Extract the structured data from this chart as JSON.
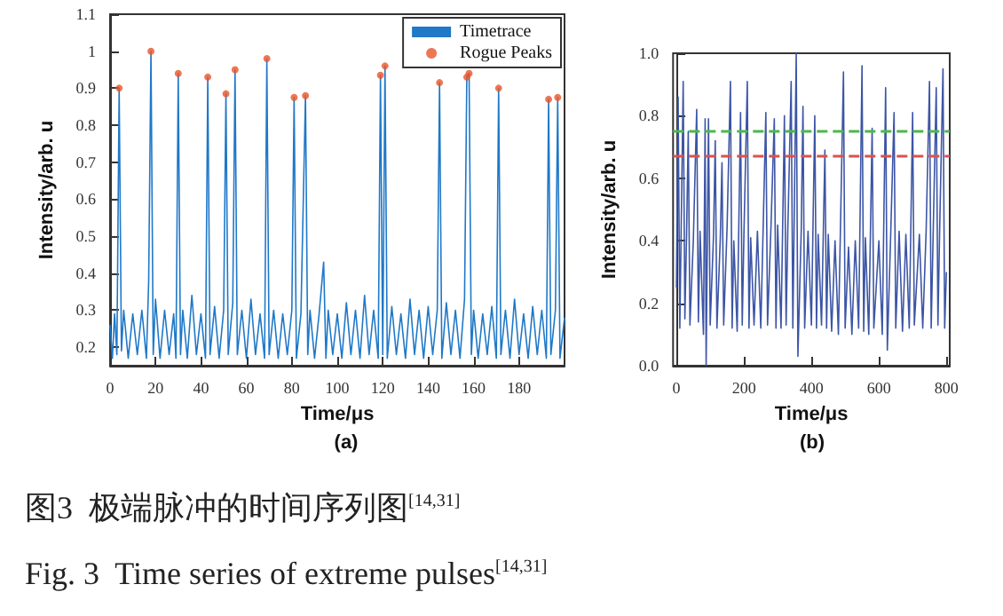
{
  "chart_data": [
    {
      "type": "line",
      "title": "(a)",
      "xlabel": "Time/μs",
      "ylabel": "Intensity/arb. u",
      "xlim": [
        0,
        200
      ],
      "xticks": [
        0,
        20,
        40,
        60,
        80,
        100,
        120,
        140,
        160,
        180
      ],
      "ylim": [
        0.15,
        1.1
      ],
      "yticks": [
        0.2,
        0.3,
        0.4,
        0.5,
        0.6,
        0.7,
        0.8,
        0.9,
        1,
        1.1
      ],
      "grid": false,
      "legend": "top right",
      "annotations": [
        "图3  极端脉冲的时间序列图$^{[14,31]}$",
        "Fig. 3  Time series of extreme pulses$^{[14,31]}$"
      ],
      "series": [
        {
          "name": "Timetrace",
          "color": "#1f78c8",
          "x": [
            0,
            1,
            2,
            3,
            4,
            5,
            6,
            8,
            10,
            12,
            14,
            16,
            17,
            18,
            19,
            20,
            22,
            24,
            26,
            28,
            29,
            30,
            31,
            32,
            34,
            36,
            38,
            40,
            42,
            43,
            44,
            46,
            48,
            50,
            51,
            52,
            54,
            55,
            56,
            58,
            60,
            62,
            64,
            66,
            68,
            69,
            70,
            72,
            74,
            76,
            78,
            80,
            81,
            82,
            84,
            86,
            87,
            88,
            90,
            92,
            94,
            95,
            96,
            98,
            100,
            102,
            104,
            106,
            108,
            110,
            112,
            114,
            116,
            118,
            119,
            120,
            121,
            122,
            124,
            126,
            128,
            130,
            132,
            134,
            136,
            138,
            140,
            142,
            144,
            145,
            146,
            148,
            150,
            152,
            154,
            156,
            157,
            158,
            159,
            160,
            162,
            164,
            166,
            168,
            170,
            171,
            172,
            174,
            176,
            178,
            180,
            182,
            184,
            186,
            188,
            190,
            192,
            193,
            194,
            196,
            197,
            198,
            200
          ],
          "values": [
            0.26,
            0.17,
            0.29,
            0.18,
            0.9,
            0.19,
            0.3,
            0.17,
            0.29,
            0.18,
            0.3,
            0.17,
            0.38,
            1.0,
            0.18,
            0.33,
            0.17,
            0.3,
            0.18,
            0.29,
            0.17,
            0.94,
            0.18,
            0.3,
            0.17,
            0.34,
            0.18,
            0.29,
            0.17,
            0.93,
            0.18,
            0.31,
            0.17,
            0.3,
            0.885,
            0.18,
            0.32,
            0.95,
            0.18,
            0.3,
            0.17,
            0.33,
            0.18,
            0.29,
            0.17,
            0.98,
            0.18,
            0.3,
            0.17,
            0.29,
            0.18,
            0.3,
            0.875,
            0.17,
            0.29,
            0.88,
            0.18,
            0.3,
            0.17,
            0.29,
            0.43,
            0.17,
            0.3,
            0.18,
            0.29,
            0.17,
            0.32,
            0.18,
            0.3,
            0.17,
            0.34,
            0.18,
            0.3,
            0.17,
            0.935,
            0.18,
            0.96,
            0.17,
            0.31,
            0.18,
            0.29,
            0.17,
            0.33,
            0.18,
            0.3,
            0.17,
            0.31,
            0.18,
            0.3,
            0.915,
            0.17,
            0.32,
            0.18,
            0.3,
            0.17,
            0.33,
            0.93,
            0.94,
            0.18,
            0.3,
            0.17,
            0.29,
            0.18,
            0.31,
            0.17,
            0.9,
            0.18,
            0.3,
            0.17,
            0.33,
            0.18,
            0.29,
            0.17,
            0.31,
            0.18,
            0.3,
            0.17,
            0.87,
            0.18,
            0.3,
            0.875,
            0.17,
            0.28
          ]
        },
        {
          "name": "Rogue Peaks",
          "type": "scatter",
          "color": "#e8552a",
          "x": [
            4,
            18,
            30,
            43,
            51,
            55,
            69,
            81,
            86,
            119,
            121,
            145,
            157,
            158,
            171,
            193,
            197
          ],
          "values": [
            0.9,
            1.0,
            0.94,
            0.93,
            0.885,
            0.95,
            0.98,
            0.875,
            0.88,
            0.935,
            0.96,
            0.915,
            0.93,
            0.94,
            0.9,
            0.87,
            0.875
          ]
        }
      ]
    },
    {
      "type": "line",
      "title": "(b)",
      "xlabel": "Time/μs",
      "ylabel": "Intensity/arb. u",
      "xlim": [
        -10,
        810
      ],
      "xticks": [
        0,
        200,
        400,
        600,
        800
      ],
      "ylim": [
        0,
        1.0
      ],
      "yticks": [
        {
          "value": 0,
          "label": "0.0"
        },
        {
          "value": 0.2,
          "label": "0.2"
        },
        {
          "value": 0.4,
          "label": "0.4"
        },
        {
          "value": 0.6,
          "label": "0.6"
        },
        {
          "value": 0.8,
          "label": "0.8"
        },
        {
          "value": 1.0,
          "label": "1.0"
        }
      ],
      "grid": false,
      "ref_lines": [
        {
          "axis": "y",
          "value": 0.75,
          "color": "#4cb84c",
          "line_style": "dashed"
        },
        {
          "axis": "y",
          "value": 0.665,
          "color": "#d9534f",
          "line_style": "dashed"
        }
      ],
      "series": [
        {
          "color": "#3c55a5",
          "x": [
            0,
            5,
            10,
            20,
            25,
            30,
            35,
            40,
            50,
            60,
            65,
            70,
            80,
            85,
            88,
            95,
            100,
            110,
            115,
            120,
            130,
            135,
            140,
            150,
            160,
            165,
            170,
            180,
            190,
            195,
            200,
            210,
            215,
            220,
            230,
            240,
            250,
            265,
            270,
            280,
            290,
            295,
            300,
            310,
            320,
            325,
            330,
            340,
            345,
            355,
            360,
            370,
            375,
            380,
            390,
            400,
            410,
            415,
            420,
            430,
            440,
            445,
            450,
            460,
            470,
            480,
            495,
            500,
            510,
            520,
            530,
            540,
            550,
            555,
            560,
            570,
            580,
            585,
            600,
            610,
            620,
            625,
            635,
            645,
            650,
            660,
            670,
            680,
            690,
            700,
            705,
            720,
            730,
            740,
            750,
            755,
            770,
            775,
            780,
            790,
            795,
            800
          ],
          "values": [
            0.25,
            0.86,
            0.12,
            0.91,
            0.15,
            0.42,
            0.75,
            0.13,
            0.4,
            0.82,
            0.14,
            0.43,
            0.1,
            0.79,
            0.0,
            0.79,
            0.13,
            0.42,
            0.72,
            0.12,
            0.41,
            0.65,
            0.13,
            0.44,
            0.91,
            0.12,
            0.4,
            0.11,
            0.81,
            0.13,
            0.42,
            0.91,
            0.12,
            0.41,
            0.13,
            0.43,
            0.12,
            0.81,
            0.13,
            0.44,
            0.79,
            0.12,
            0.45,
            0.12,
            0.8,
            0.13,
            0.43,
            0.91,
            0.12,
            1.0,
            0.03,
            0.44,
            0.83,
            0.12,
            0.43,
            0.13,
            0.8,
            0.12,
            0.42,
            0.13,
            0.69,
            0.12,
            0.42,
            0.11,
            0.4,
            0.1,
            0.94,
            0.12,
            0.38,
            0.1,
            0.4,
            0.12,
            0.96,
            0.11,
            0.41,
            0.1,
            0.76,
            0.12,
            0.4,
            0.1,
            0.89,
            0.05,
            0.42,
            0.81,
            0.12,
            0.43,
            0.11,
            0.42,
            0.12,
            0.81,
            0.13,
            0.42,
            0.12,
            0.43,
            0.91,
            0.12,
            0.89,
            0.13,
            0.43,
            0.95,
            0.12,
            0.3
          ]
        }
      ]
    }
  ]
}
